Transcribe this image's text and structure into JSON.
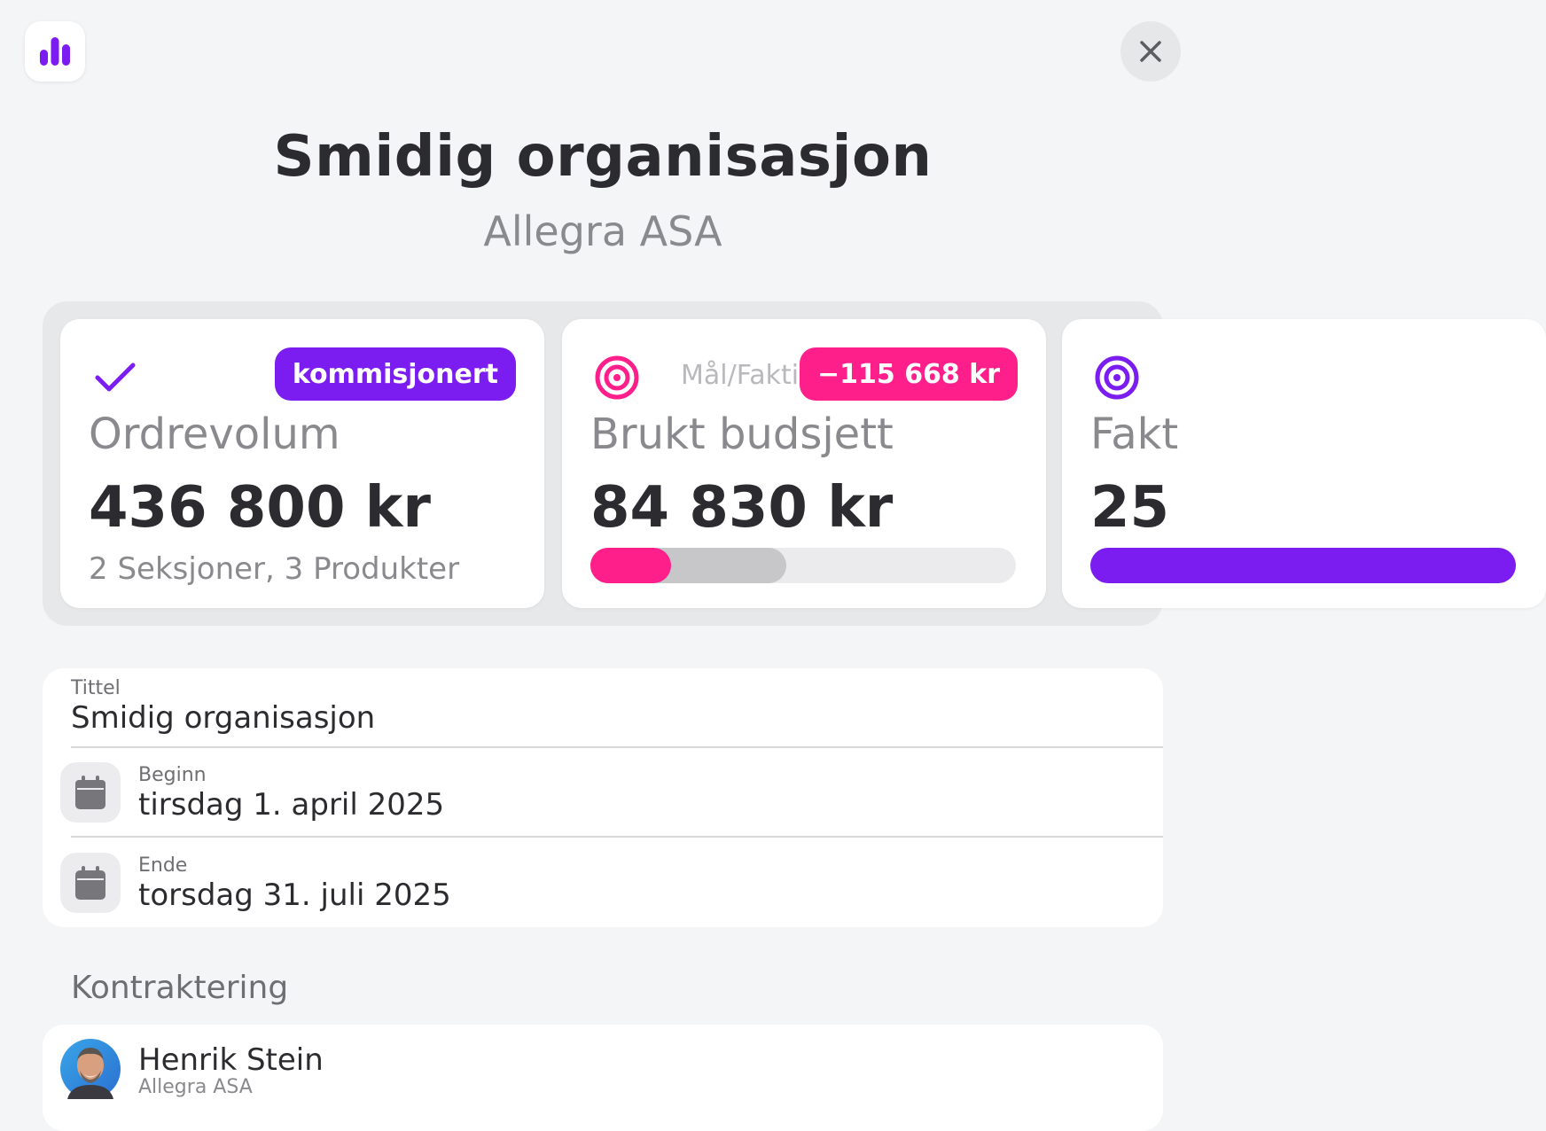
{
  "header": {
    "app_icon": "bar-chart-icon",
    "close_icon": "close-icon",
    "title": "Smidig organisasjon",
    "subtitle": "Allegra ASA"
  },
  "colors": {
    "purple": "#7b1df0",
    "pink": "#ff1f8b",
    "text_dark": "#2c2c30",
    "text_muted": "#8a8a8e"
  },
  "cards": [
    {
      "icon": "check-icon",
      "badge": "kommisjonert",
      "label": "Ordrevolum",
      "value": "436 800 kr",
      "sub": "2 Seksjoner, 3 Produkter"
    },
    {
      "icon": "target-icon",
      "mal_label": "Mål/Faktisk",
      "badge": "−115 668 kr",
      "label": "Brukt budsjett",
      "value": "84 830 kr",
      "progress_actual_fraction": 0.19,
      "progress_target_fraction": 0.46
    },
    {
      "icon": "target-icon",
      "label": "Fakt",
      "value": "25"
    }
  ],
  "form": {
    "title_label": "Tittel",
    "title_value": "Smidig organisasjon",
    "start_label": "Beginn",
    "start_value": "tirsdag 1. april 2025",
    "end_label": "Ende",
    "end_value": "torsdag 31. juli 2025"
  },
  "contracting": {
    "heading": "Kontraktering",
    "contact_name": "Henrik Stein",
    "contact_company": "Allegra ASA"
  }
}
